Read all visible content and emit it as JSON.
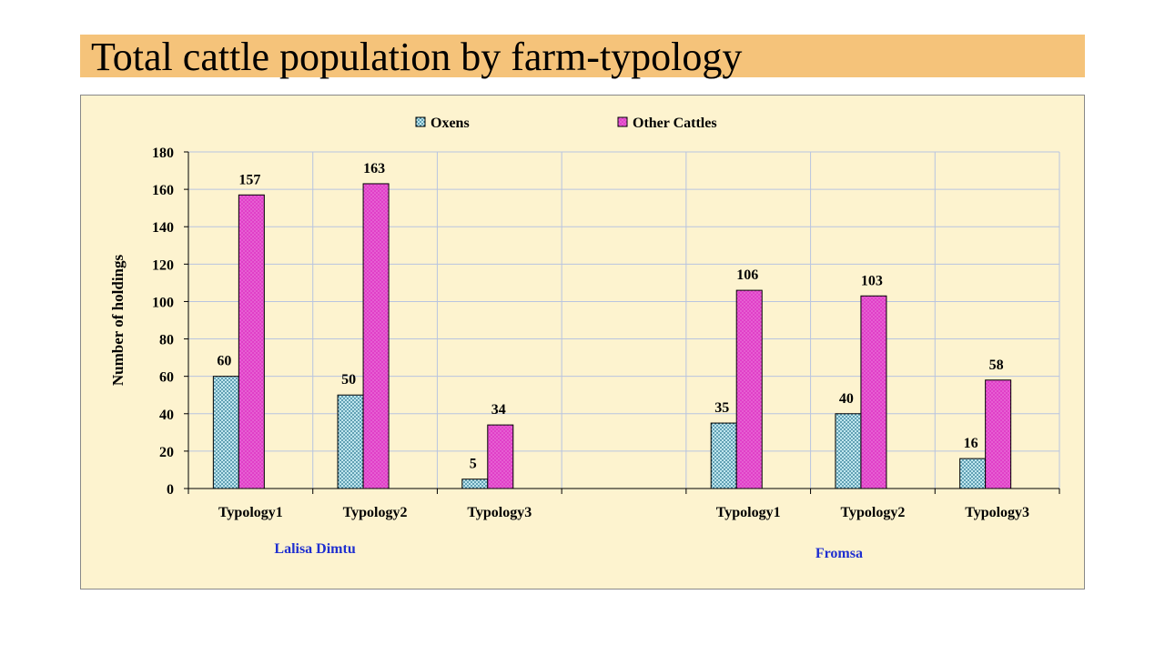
{
  "page": {
    "title": "Total cattle population by farm-typology"
  },
  "colors": {
    "title_bg": "#f5c37a",
    "plot_bg": "#fdf3cf",
    "oxens_fill": "#bfe6ee",
    "oxens_dot": "#1f6f8b",
    "other_fill": "#e040c8",
    "other_dot": "#f4a8ec",
    "group_label": "#1f2fd0",
    "grid": "#b8c4e0"
  },
  "chart_data": {
    "type": "bar",
    "title": "Total cattle population by farm-typology",
    "xlabel": "",
    "ylabel": "Number of holdings",
    "ylim": [
      0,
      180
    ],
    "yticks": [
      0,
      20,
      40,
      60,
      80,
      100,
      120,
      140,
      160,
      180
    ],
    "grid": true,
    "legend_position": "top",
    "categories": [
      "Typology1",
      "Typology2",
      "Typology3",
      "",
      "Typology1",
      "Typology2",
      "Typology3"
    ],
    "groups": [
      {
        "label": "Lalisa Dimtu"
      },
      {
        "label": "Fromsa"
      }
    ],
    "series": [
      {
        "name": "Oxens",
        "values": [
          60,
          50,
          5,
          null,
          35,
          40,
          16
        ],
        "labels": [
          "60",
          "50",
          "5",
          "",
          "35",
          "40",
          "16"
        ]
      },
      {
        "name": "Other Cattles",
        "values": [
          157,
          163,
          34,
          null,
          106,
          103,
          58
        ],
        "labels": [
          "157",
          "163",
          "34",
          "",
          "106",
          "103",
          "58"
        ]
      }
    ]
  }
}
